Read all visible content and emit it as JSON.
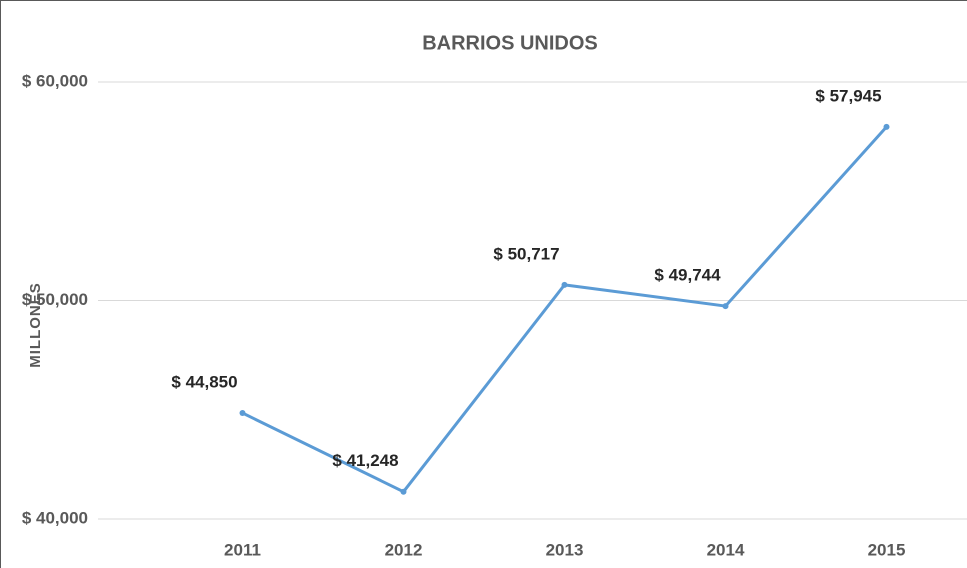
{
  "chart_data": {
    "type": "line",
    "title": "BARRIOS UNIDOS",
    "y_label": "MILLONES",
    "categories": [
      "2011",
      "2012",
      "2013",
      "2014",
      "2015"
    ],
    "values": [
      44850,
      41248,
      50717,
      49744,
      57945
    ],
    "value_labels": [
      "$ 44,850",
      "$ 41,248",
      "$ 50,717",
      "$ 49,744",
      "$ 57,945"
    ],
    "color": "#5b9bd5",
    "ylim": [
      40000,
      60000
    ],
    "yticks": [
      {
        "value": 40000,
        "label": "$ 40,000"
      },
      {
        "value": 50000,
        "label": "$ 50,000"
      },
      {
        "value": 60000,
        "label": "$ 60,000"
      }
    ],
    "grid": true
  }
}
